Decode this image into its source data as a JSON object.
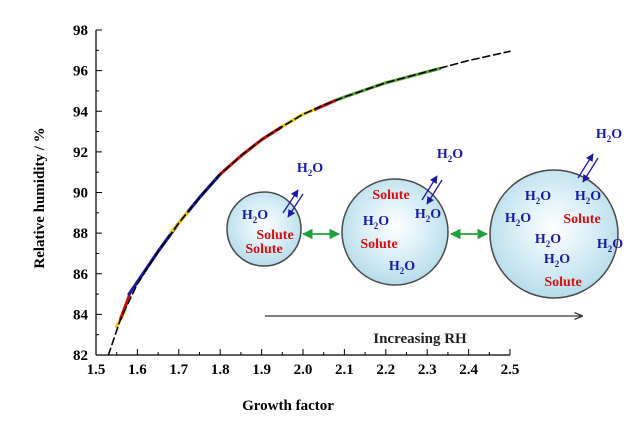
{
  "chart_data": {
    "type": "line",
    "xlabel": "Growth factor",
    "ylabel": "Relative humidity / %",
    "xlim": [
      1.5,
      2.5
    ],
    "ylim": [
      82,
      98
    ],
    "xticks": [
      "1.5",
      "1.6",
      "1.7",
      "1.8",
      "1.9",
      "2.0",
      "2.1",
      "2.2",
      "2.3",
      "2.4",
      "2.5"
    ],
    "yticks": [
      "82",
      "84",
      "86",
      "88",
      "90",
      "92",
      "94",
      "96",
      "98"
    ],
    "grid": false,
    "series": [
      {
        "style": "dashed",
        "color": "#000000",
        "x": [
          1.53,
          1.56,
          1.6,
          1.65,
          1.7,
          1.75,
          1.8,
          1.85,
          1.9,
          1.95,
          2.0,
          2.05,
          2.1,
          2.2,
          2.3,
          2.4,
          2.5
        ],
        "y": [
          82.0,
          83.8,
          85.5,
          87.1,
          88.5,
          89.75,
          90.9,
          91.8,
          92.6,
          93.25,
          93.85,
          94.3,
          94.7,
          95.4,
          95.95,
          96.5,
          96.95
        ]
      },
      {
        "color": "#e8c800",
        "x": [
          1.55,
          1.57
        ],
        "y": [
          83.4,
          84.2
        ]
      },
      {
        "color": "#d01010",
        "x": [
          1.56,
          1.58
        ],
        "y": [
          83.8,
          84.9
        ]
      },
      {
        "color": "#1a1a9c",
        "x": [
          1.58,
          1.65,
          1.7,
          1.75,
          1.8
        ],
        "y": [
          85.0,
          87.1,
          88.5,
          89.75,
          90.9
        ]
      },
      {
        "color": "#e8c800",
        "x": [
          1.68,
          1.72
        ],
        "y": [
          88.0,
          89.0
        ]
      },
      {
        "color": "#d01010",
        "x": [
          1.8,
          1.85,
          1.9,
          1.95
        ],
        "y": [
          90.9,
          91.8,
          92.6,
          93.25
        ]
      },
      {
        "color": "#e8c800",
        "x": [
          1.95,
          2.0,
          2.03
        ],
        "y": [
          93.25,
          93.85,
          94.1
        ]
      },
      {
        "color": "#d01010",
        "x": [
          2.03,
          2.08
        ],
        "y": [
          94.1,
          94.55
        ]
      },
      {
        "color": "#5aa832",
        "x": [
          2.08,
          2.1,
          2.2,
          2.33
        ],
        "y": [
          94.55,
          94.7,
          95.4,
          96.1
        ]
      }
    ],
    "annotation": {
      "water": "H2O",
      "solute": "Solute",
      "arrow_label": "Increasing RH",
      "droplets": [
        {
          "labels": [
            {
              "text": "H2O",
              "color": "#1a1a9c"
            },
            {
              "text": "Solute",
              "color": "#d01010"
            },
            {
              "text": "Solute",
              "color": "#d01010"
            }
          ],
          "exchange_label": "H2O"
        },
        {
          "labels": [
            {
              "text": "Solute",
              "color": "#d01010"
            },
            {
              "text": "H2O",
              "color": "#1a1a9c"
            },
            {
              "text": "H2O",
              "color": "#1a1a9c"
            },
            {
              "text": "Solute",
              "color": "#d01010"
            },
            {
              "text": "H2O",
              "color": "#1a1a9c"
            }
          ],
          "exchange_label": "H2O"
        },
        {
          "labels": [
            {
              "text": "H2O",
              "color": "#1a1a9c"
            },
            {
              "text": "H2O",
              "color": "#1a1a9c"
            },
            {
              "text": "H2O",
              "color": "#1a1a9c"
            },
            {
              "text": "Solute",
              "color": "#d01010"
            },
            {
              "text": "H2O",
              "color": "#1a1a9c"
            },
            {
              "text": "H2O",
              "color": "#1a1a9c"
            },
            {
              "text": "H2O",
              "color": "#1a1a9c"
            },
            {
              "text": "Solute",
              "color": "#d01010"
            }
          ],
          "exchange_label": "H2O"
        }
      ]
    }
  }
}
